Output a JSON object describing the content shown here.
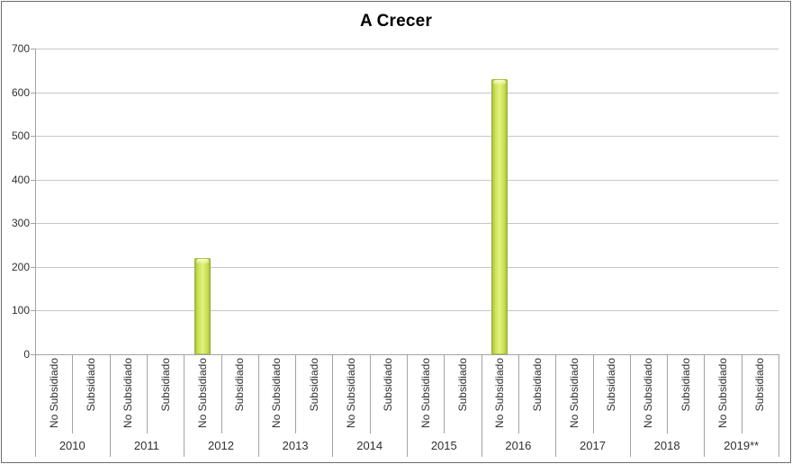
{
  "chart_data": {
    "type": "bar",
    "title": "A Crecer",
    "xlabel": "",
    "ylabel": "",
    "ylim": [
      0,
      700
    ],
    "ytick_interval": 100,
    "grid": true,
    "legend": "none",
    "years": [
      "2010",
      "2011",
      "2012",
      "2013",
      "2014",
      "2015",
      "2016",
      "2017",
      "2018",
      "2019**"
    ],
    "subcategories": [
      "No Subsidiado",
      "Subsidiado"
    ],
    "series": [
      {
        "name": "A Crecer",
        "values_by_year": [
          {
            "year": "2010",
            "No Subsidiado": 0,
            "Subsidiado": 0
          },
          {
            "year": "2011",
            "No Subsidiado": 0,
            "Subsidiado": 0
          },
          {
            "year": "2012",
            "No Subsidiado": 220,
            "Subsidiado": 0
          },
          {
            "year": "2013",
            "No Subsidiado": 0,
            "Subsidiado": 0
          },
          {
            "year": "2014",
            "No Subsidiado": 0,
            "Subsidiado": 0
          },
          {
            "year": "2015",
            "No Subsidiado": 0,
            "Subsidiado": 0
          },
          {
            "year": "2016",
            "No Subsidiado": 630,
            "Subsidiado": 0
          },
          {
            "year": "2017",
            "No Subsidiado": 0,
            "Subsidiado": 0
          },
          {
            "year": "2018",
            "No Subsidiado": 0,
            "Subsidiado": 0
          },
          {
            "year": "2019**",
            "No Subsidiado": 0,
            "Subsidiado": 0
          }
        ]
      }
    ],
    "colors": {
      "bar_edge": "#9cb83a",
      "bar_mid": "#c9e052",
      "bar_center": "#e3f282",
      "gridline": "#c6c6c6",
      "axis": "#a3a3a3",
      "tick_text": "#303030",
      "title_text": "#000000",
      "chart_border": "#6b6b6b",
      "background": "#ffffff"
    }
  }
}
